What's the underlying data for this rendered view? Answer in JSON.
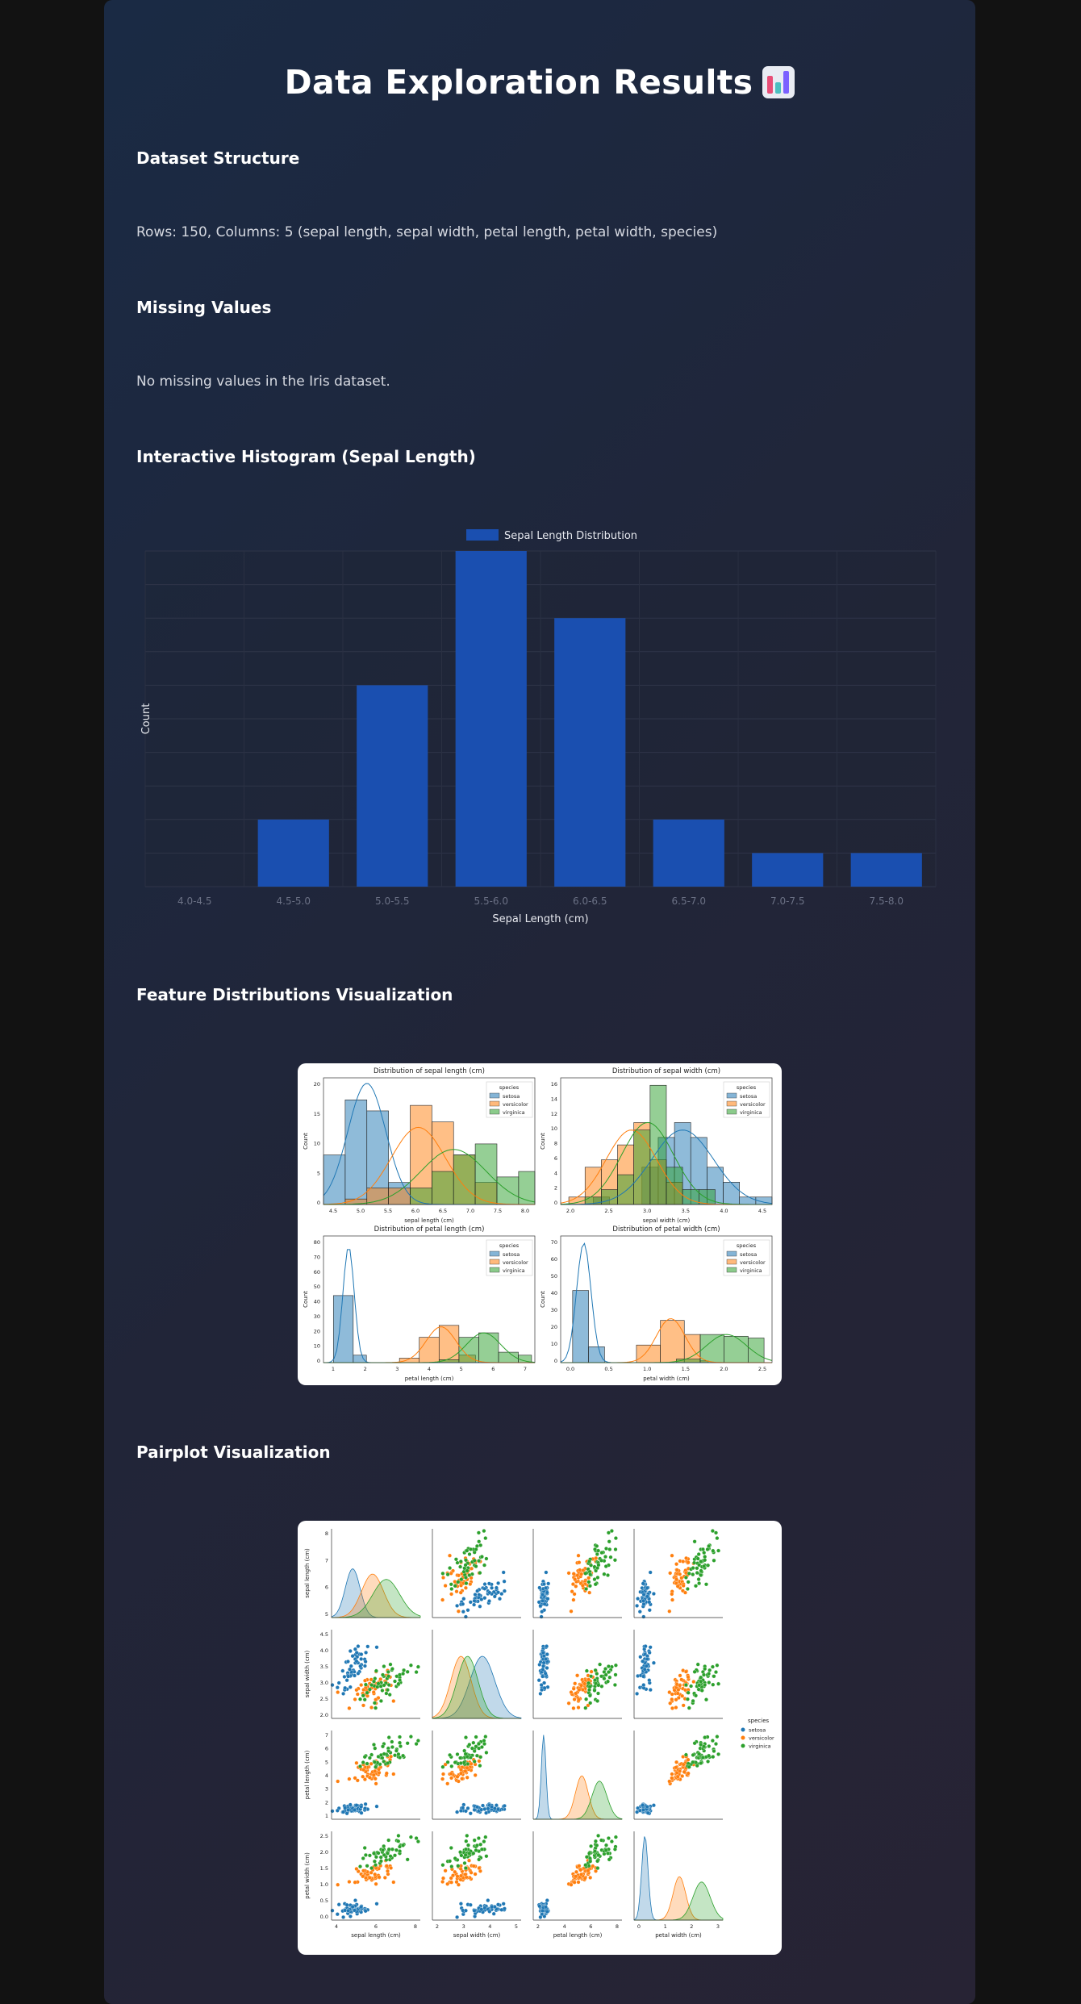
{
  "page": {
    "title": "Data Exploration Results"
  },
  "sections": {
    "structure": {
      "heading": "Dataset Structure",
      "text": "Rows: 150, Columns: 5 (sepal length, sepal width, petal length, petal width, species)"
    },
    "missing": {
      "heading": "Missing Values",
      "text": "No missing values in the Iris dataset."
    },
    "histogram": {
      "heading": "Interactive Histogram (Sepal Length)"
    },
    "features": {
      "heading": "Feature Distributions Visualization"
    },
    "pairplot": {
      "heading": "Pairplot Visualization"
    }
  },
  "colors": {
    "bar": "#1a4fb0",
    "setosa": "#1f77b4",
    "versicolor": "#ff7f0e",
    "virginica": "#2ca02c"
  },
  "chart_data": [
    {
      "type": "bar",
      "legend": "Sepal Length Distribution",
      "categories": [
        "4.0-4.5",
        "4.5-5.0",
        "5.0-5.5",
        "5.5-6.0",
        "6.0-6.5",
        "6.5-7.0",
        "7.0-7.5",
        "7.5-8.0"
      ],
      "values": [
        0,
        10,
        30,
        50,
        40,
        10,
        5,
        5
      ],
      "xlabel": "Sepal Length (cm)",
      "ylabel": "Count",
      "ylim": [
        0,
        50
      ],
      "yticks": [
        0,
        5,
        10,
        15,
        20,
        25,
        30,
        35,
        40,
        45,
        50
      ],
      "grid": true,
      "legend_position": "top"
    },
    {
      "type": "bar",
      "title": "Distribution of sepal length (cm)",
      "xlabel": "sepal length (cm)",
      "ylabel": "Count",
      "xticks": [
        "4.5",
        "5.0",
        "5.5",
        "6.0",
        "6.5",
        "7.0",
        "7.5",
        "8.0"
      ],
      "yticks": [
        "0",
        "5",
        "10",
        "15",
        "20"
      ],
      "legend_title": "species",
      "series": [
        "setosa",
        "versicolor",
        "virginica"
      ]
    },
    {
      "type": "bar",
      "title": "Distribution of sepal width (cm)",
      "xlabel": "sepal width (cm)",
      "ylabel": "Count",
      "xticks": [
        "2.0",
        "2.5",
        "3.0",
        "3.5",
        "4.0",
        "4.5"
      ],
      "yticks": [
        "0",
        "2",
        "4",
        "6",
        "8",
        "10",
        "12",
        "14",
        "16"
      ],
      "legend_title": "species",
      "series": [
        "setosa",
        "versicolor",
        "virginica"
      ]
    },
    {
      "type": "bar",
      "title": "Distribution of petal length (cm)",
      "xlabel": "petal length (cm)",
      "ylabel": "Count",
      "xticks": [
        "1",
        "2",
        "3",
        "4",
        "5",
        "6",
        "7"
      ],
      "yticks": [
        "0",
        "10",
        "20",
        "30",
        "40",
        "50",
        "60",
        "70",
        "80"
      ],
      "legend_title": "species",
      "series": [
        "setosa",
        "versicolor",
        "virginica"
      ]
    },
    {
      "type": "bar",
      "title": "Distribution of petal width (cm)",
      "xlabel": "petal width (cm)",
      "ylabel": "Count",
      "xticks": [
        "0.0",
        "0.5",
        "1.0",
        "1.5",
        "2.0",
        "2.5"
      ],
      "yticks": [
        "0",
        "10",
        "20",
        "30",
        "40",
        "50",
        "60",
        "70"
      ],
      "legend_title": "species",
      "series": [
        "setosa",
        "versicolor",
        "virginica"
      ]
    },
    {
      "type": "scatter",
      "variables": [
        "sepal length (cm)",
        "sepal width (cm)",
        "petal length (cm)",
        "petal width (cm)"
      ],
      "yticks": [
        [
          "5",
          "6",
          "7",
          "8"
        ],
        [
          "2.0",
          "2.5",
          "3.0",
          "3.5",
          "4.0",
          "4.5"
        ],
        [
          "1",
          "2",
          "3",
          "4",
          "5",
          "6",
          "7"
        ],
        [
          "0.0",
          "0.5",
          "1.0",
          "1.5",
          "2.0",
          "2.5"
        ]
      ],
      "xticks": [
        [
          "4",
          "6",
          "8"
        ],
        [
          "2",
          "3",
          "4",
          "5"
        ],
        [
          "2",
          "4",
          "6",
          "8"
        ],
        [
          "0",
          "1",
          "2",
          "3"
        ]
      ],
      "legend_title": "species",
      "series": [
        "setosa",
        "versicolor",
        "virginica"
      ]
    }
  ]
}
